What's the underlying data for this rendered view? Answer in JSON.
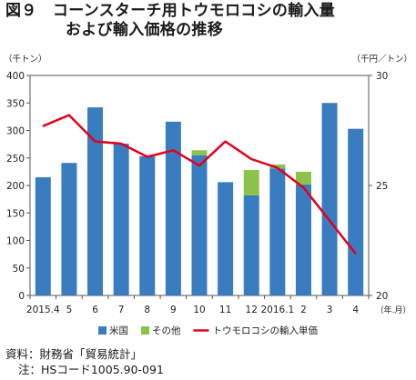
{
  "title": {
    "line1": "図９　コーンスターチ用トウモロコシの輸入量",
    "line2": "および輸入価格の推移"
  },
  "chart_data": {
    "type": "bar",
    "categories": [
      "2015.4",
      "5",
      "6",
      "7",
      "8",
      "9",
      "10",
      "11",
      "12",
      "2016.1",
      "2",
      "3",
      "4"
    ],
    "x_unit_label": "（年.月）",
    "left_axis": {
      "unit_label": "（千トン）",
      "ylim": [
        0,
        400
      ],
      "ticks": [
        0,
        50,
        100,
        150,
        200,
        250,
        300,
        350,
        400
      ]
    },
    "right_axis": {
      "unit_label": "（千円／トン）",
      "ylim": [
        20,
        30
      ],
      "ticks": [
        20,
        25,
        30
      ]
    },
    "series": [
      {
        "name": "米国",
        "kind": "bar",
        "stack": "import",
        "axis": "left",
        "color": "#3a7cc0",
        "values": [
          215,
          241,
          342,
          276,
          253,
          316,
          255,
          206,
          182,
          231,
          202,
          350,
          303
        ]
      },
      {
        "name": "その他",
        "kind": "bar",
        "stack": "import",
        "axis": "left",
        "color": "#8bc34a",
        "values": [
          0,
          0,
          0,
          0,
          0,
          0,
          9,
          0,
          46,
          7,
          23,
          0,
          0
        ]
      },
      {
        "name": "トウモロコシの輸入単価",
        "kind": "line",
        "axis": "right",
        "color": "#e3001b",
        "values": [
          27.7,
          28.2,
          27.0,
          26.9,
          26.3,
          26.6,
          25.9,
          27.0,
          26.2,
          25.8,
          24.9,
          23.4,
          21.9
        ]
      }
    ],
    "grid": false,
    "legend": "bottom"
  },
  "source": {
    "line1": "資料：財務省「貿易統計」",
    "line2": "注：HSコード1005.90-091"
  }
}
